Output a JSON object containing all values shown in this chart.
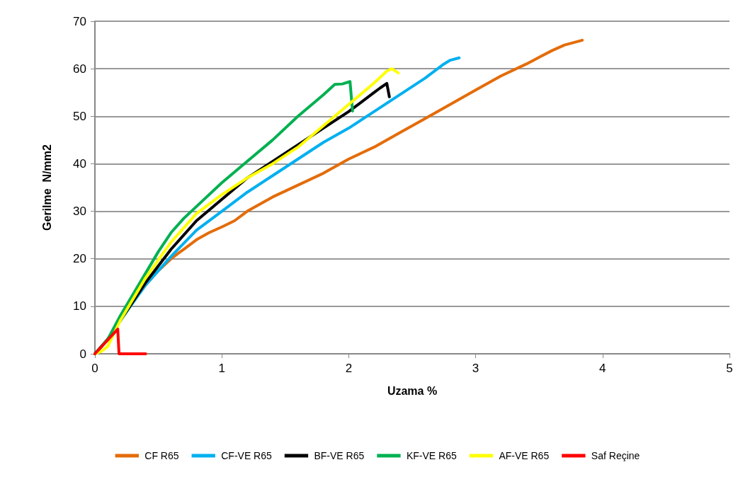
{
  "chart_data": {
    "type": "line",
    "xlabel": "Uzama %",
    "ylabel": "Gerilme  N/mm2",
    "xlim": [
      0,
      5
    ],
    "xticks": [
      0,
      1,
      2,
      3,
      4,
      5
    ],
    "ylim": [
      0,
      70
    ],
    "yticks": [
      0,
      10,
      20,
      30,
      40,
      50,
      60,
      70
    ],
    "grid": "y",
    "legend": "bottom",
    "marker": "none",
    "line_style": "solid",
    "series": [
      {
        "name": "CF R65",
        "color": "#e46c0a",
        "x": [
          0,
          0.1,
          0.2,
          0.3,
          0.4,
          0.5,
          0.6,
          0.7,
          0.8,
          0.9,
          1.0,
          1.1,
          1.2,
          1.4,
          1.6,
          1.8,
          2.0,
          2.2,
          2.4,
          2.6,
          2.8,
          3.0,
          3.2,
          3.4,
          3.6,
          3.7,
          3.84
        ],
        "values": [
          0,
          3,
          7,
          11,
          14.5,
          17.5,
          20,
          22,
          24,
          25.5,
          26.7,
          28,
          30,
          33,
          35.5,
          38,
          41,
          43.5,
          46.5,
          49.5,
          52.5,
          55.5,
          58.5,
          61,
          63.8,
          65,
          66
        ]
      },
      {
        "name": "CF-VE R65",
        "color": "#00b0f0",
        "x": [
          0,
          0.1,
          0.2,
          0.4,
          0.6,
          0.8,
          1.0,
          1.2,
          1.4,
          1.6,
          1.8,
          2.0,
          2.2,
          2.4,
          2.6,
          2.75,
          2.8,
          2.87
        ],
        "values": [
          0,
          3,
          7,
          14.5,
          20.5,
          26,
          30,
          34,
          37.5,
          41,
          44.5,
          47.5,
          51,
          54.5,
          58,
          61,
          61.8,
          62.3
        ]
      },
      {
        "name": "BF-VE R65",
        "color": "#000000",
        "x": [
          0,
          0.1,
          0.2,
          0.4,
          0.6,
          0.8,
          1.0,
          1.2,
          1.4,
          1.6,
          1.8,
          2.0,
          2.2,
          2.25,
          2.3,
          2.32
        ],
        "values": [
          0,
          3,
          7,
          15,
          22,
          28,
          32.5,
          37,
          40.5,
          44,
          47.5,
          51,
          55,
          56,
          56.9,
          54.1
        ]
      },
      {
        "name": "KF-VE R65",
        "color": "#00b050",
        "x": [
          0,
          0.1,
          0.2,
          0.3,
          0.4,
          0.5,
          0.6,
          0.7,
          0.8,
          1.0,
          1.2,
          1.4,
          1.6,
          1.8,
          1.89,
          1.95,
          2.01,
          2.03
        ],
        "values": [
          0,
          3,
          8,
          12.5,
          17,
          21.5,
          25.5,
          28.5,
          31,
          36,
          40.5,
          45,
          50,
          54.5,
          56.7,
          56.8,
          57.3,
          51.1
        ]
      },
      {
        "name": "AF-VE R65",
        "color": "#ffff00",
        "x": [
          0,
          0.05,
          0.1,
          0.2,
          0.4,
          0.6,
          0.8,
          1.0,
          1.2,
          1.4,
          1.6,
          1.8,
          2.0,
          2.2,
          2.3,
          2.34,
          2.39
        ],
        "values": [
          0,
          0.5,
          1.5,
          7,
          16,
          23.5,
          29.5,
          33.5,
          37,
          40,
          43.5,
          48,
          52.5,
          57,
          59.5,
          60,
          59.1
        ]
      },
      {
        "name": "Saf Reçine",
        "color": "#ff0000",
        "x": [
          0,
          0.18,
          0.19,
          0.4
        ],
        "values": [
          0,
          5.2,
          0,
          0
        ]
      }
    ]
  }
}
